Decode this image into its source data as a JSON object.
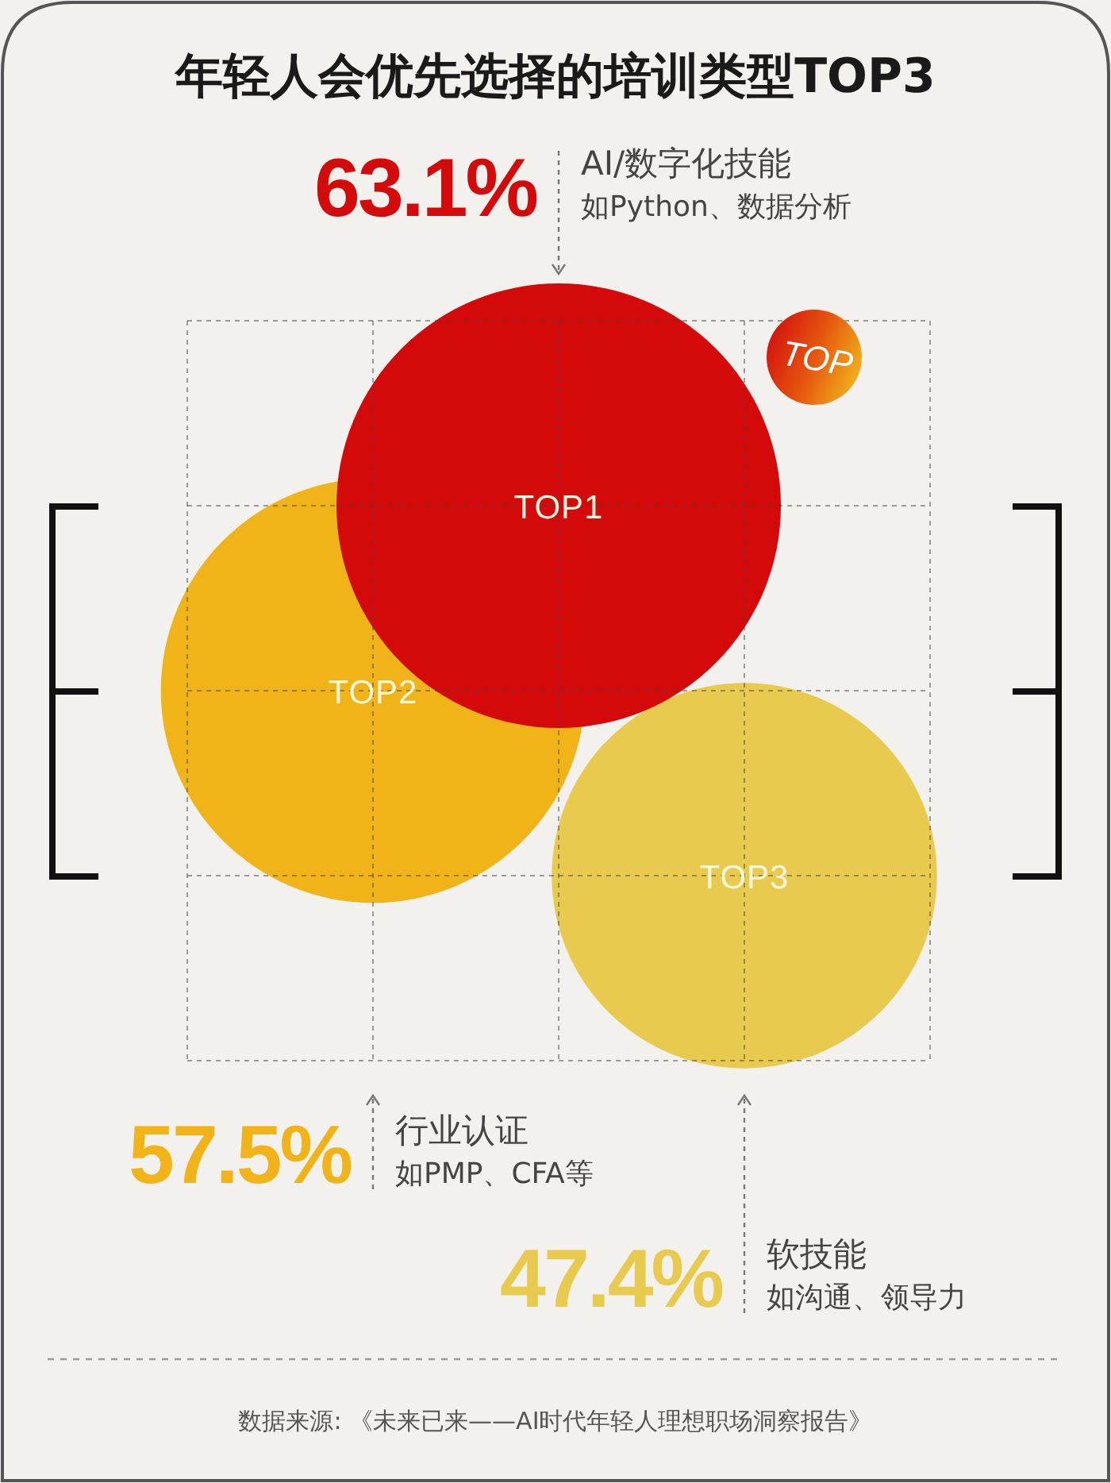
{
  "chart_data": {
    "type": "other",
    "title": "年轻人会优先选择的培训类型TOP3",
    "categories": [
      "TOP1",
      "TOP2",
      "TOP3"
    ],
    "values": [
      63.1,
      57.5,
      47.4
    ],
    "value_labels": [
      "63.1%",
      "57.5%",
      "47.4%"
    ],
    "colors": [
      "#d40a0a",
      "#f0b418",
      "#e8cb4e"
    ],
    "annotations": [
      {
        "text": "AI/数字化技能",
        "x": "TOP1"
      },
      {
        "text": "如Python、数据分析",
        "x": "TOP1"
      },
      {
        "text": "行业认证",
        "x": "TOP2"
      },
      {
        "text": "如PMP、CFA等",
        "x": "TOP2"
      },
      {
        "text": "软技能",
        "x": "TOP3"
      },
      {
        "text": "如沟通、领导力",
        "x": "TOP3"
      },
      "TOP",
      "数据来源: 《未来已来——AI时代年轻人理想职场洞察报告》"
    ]
  }
}
